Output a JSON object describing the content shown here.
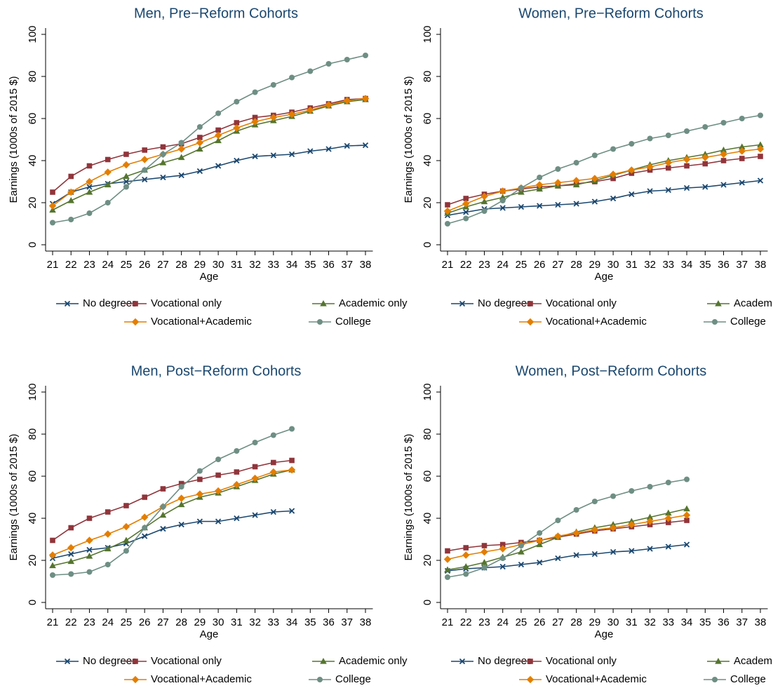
{
  "chart_data": [
    {
      "type": "line",
      "title": "Men, Pre−Reform Cohorts",
      "xlabel": "Age",
      "ylabel": "Earnings (1000s of 2015 $)",
      "x": [
        21,
        22,
        23,
        24,
        25,
        26,
        27,
        28,
        29,
        30,
        31,
        32,
        33,
        34,
        35,
        36,
        37,
        38
      ],
      "xlim": [
        20.6,
        38.4
      ],
      "xticks": [
        21,
        22,
        23,
        24,
        25,
        26,
        27,
        28,
        29,
        30,
        31,
        32,
        33,
        34,
        35,
        36,
        37,
        38
      ],
      "ylim": [
        -3,
        103
      ],
      "yticks": [
        0,
        20,
        40,
        60,
        80,
        100
      ],
      "series": [
        {
          "name": "No degrees",
          "color": "#1a476f",
          "marker": "x",
          "values": [
            19.5,
            25,
            27.5,
            29,
            30,
            31,
            32,
            33,
            35,
            37.5,
            40,
            42,
            42.5,
            43,
            44.5,
            45.5,
            47,
            47.3
          ]
        },
        {
          "name": "Vocational only",
          "color": "#90353b",
          "marker": "square",
          "values": [
            25,
            32.5,
            37.5,
            40.5,
            43,
            45,
            46.5,
            48,
            51,
            54.5,
            58,
            60.5,
            61.5,
            63,
            65,
            67,
            69,
            69.5
          ]
        },
        {
          "name": "Academic only",
          "color": "#55752f",
          "marker": "triangle",
          "values": [
            16.5,
            21,
            25,
            28.5,
            32.5,
            35.5,
            39,
            41.5,
            45.5,
            49.5,
            54,
            57,
            59,
            61,
            63.5,
            66,
            68,
            69
          ]
        },
        {
          "name": "Vocational+Academic",
          "color": "#e37e00",
          "marker": "diamond",
          "values": [
            18.5,
            25,
            30,
            34.5,
            38,
            40.5,
            43,
            45.5,
            48.5,
            52,
            55.5,
            58.5,
            60.5,
            62,
            64,
            66.5,
            68.5,
            69.5
          ]
        },
        {
          "name": "College",
          "color": "#6e8e84",
          "marker": "circle",
          "values": [
            10.5,
            12,
            15,
            20,
            27.5,
            35.5,
            43,
            48.5,
            56,
            62.5,
            68,
            72.5,
            76,
            79.5,
            82.5,
            86,
            88,
            90
          ]
        }
      ]
    },
    {
      "type": "line",
      "title": "Women, Pre−Reform Cohorts",
      "xlabel": "Age",
      "ylabel": "Earnings (1000s of 2015 $)",
      "x": [
        21,
        22,
        23,
        24,
        25,
        26,
        27,
        28,
        29,
        30,
        31,
        32,
        33,
        34,
        35,
        36,
        37,
        38
      ],
      "xlim": [
        20.6,
        38.4
      ],
      "xticks": [
        21,
        22,
        23,
        24,
        25,
        26,
        27,
        28,
        29,
        30,
        31,
        32,
        33,
        34,
        35,
        36,
        37,
        38
      ],
      "ylim": [
        -3,
        103
      ],
      "yticks": [
        0,
        20,
        40,
        60,
        80,
        100
      ],
      "series": [
        {
          "name": "No degrees",
          "color": "#1a476f",
          "marker": "x",
          "values": [
            14,
            15.5,
            17,
            17.5,
            18,
            18.5,
            19,
            19.5,
            20.5,
            22,
            24,
            25.5,
            26,
            27,
            27.5,
            28.5,
            29.5,
            30.5
          ]
        },
        {
          "name": "Vocational only",
          "color": "#90353b",
          "marker": "square",
          "values": [
            19,
            22,
            24,
            25.5,
            26.5,
            27.5,
            28,
            29,
            30,
            31.5,
            34,
            35.5,
            36.5,
            37.5,
            38.5,
            40,
            41,
            42
          ]
        },
        {
          "name": "Academic only",
          "color": "#55752f",
          "marker": "triangle",
          "values": [
            15,
            18,
            20.5,
            22.5,
            25,
            26.5,
            28,
            28.5,
            30.5,
            33,
            35.5,
            38,
            40,
            41.5,
            43,
            45,
            46.5,
            47.5
          ]
        },
        {
          "name": "Vocational+Academic",
          "color": "#e37e00",
          "marker": "diamond",
          "values": [
            16,
            19.5,
            23,
            25.5,
            27,
            28.5,
            29.5,
            30.5,
            31.5,
            33.5,
            35.5,
            37,
            39,
            40.5,
            41.5,
            43,
            44.5,
            45.5
          ]
        },
        {
          "name": "College",
          "color": "#6e8e84",
          "marker": "circle",
          "values": [
            10,
            12.5,
            16,
            21,
            27,
            32,
            36,
            39,
            42.5,
            45.5,
            48,
            50.5,
            52,
            54,
            56,
            58,
            60,
            61.5
          ]
        }
      ]
    },
    {
      "type": "line",
      "title": "Men, Post−Reform Cohorts",
      "xlabel": "Age",
      "ylabel": "Earnings (1000s of 2015 $)",
      "x": [
        21,
        22,
        23,
        24,
        25,
        26,
        27,
        28,
        29,
        30,
        31,
        32,
        33,
        34
      ],
      "xlim": [
        20.6,
        38.4
      ],
      "xticks": [
        21,
        22,
        23,
        24,
        25,
        26,
        27,
        28,
        29,
        30,
        31,
        32,
        33,
        34,
        35,
        36,
        37,
        38
      ],
      "ylim": [
        -3,
        103
      ],
      "yticks": [
        0,
        20,
        40,
        60,
        80,
        100
      ],
      "series": [
        {
          "name": "No degrees",
          "color": "#1a476f",
          "marker": "x",
          "values": [
            21,
            23,
            25,
            26,
            28,
            31.5,
            35,
            37,
            38.5,
            38.5,
            40,
            41.5,
            43,
            43.5
          ]
        },
        {
          "name": "Vocational only",
          "color": "#90353b",
          "marker": "square",
          "values": [
            29.5,
            35.5,
            40,
            43,
            46,
            50,
            54,
            56.5,
            58.5,
            60.5,
            62,
            64.5,
            66.5,
            67.5
          ]
        },
        {
          "name": "Academic only",
          "color": "#55752f",
          "marker": "triangle",
          "values": [
            17.5,
            19.5,
            22,
            25.5,
            29.5,
            35.5,
            41.5,
            46.5,
            50,
            52,
            55,
            58,
            61,
            63
          ]
        },
        {
          "name": "Vocational+Academic",
          "color": "#e37e00",
          "marker": "diamond",
          "values": [
            22.5,
            26,
            29.5,
            32.5,
            36,
            40.5,
            45.5,
            49.5,
            51.5,
            53,
            56,
            59,
            62,
            63
          ]
        },
        {
          "name": "College",
          "color": "#6e8e84",
          "marker": "circle",
          "values": [
            13,
            13.5,
            14.5,
            18,
            24.5,
            35.5,
            45.5,
            55,
            62.5,
            68,
            72,
            76,
            79.5,
            82.5
          ]
        }
      ]
    },
    {
      "type": "line",
      "title": "Women, Post−Reform Cohorts",
      "xlabel": "Age",
      "ylabel": "Earnings (1000s of 2015 $)",
      "x": [
        21,
        22,
        23,
        24,
        25,
        26,
        27,
        28,
        29,
        30,
        31,
        32,
        33,
        34
      ],
      "xlim": [
        20.6,
        38.4
      ],
      "xticks": [
        21,
        22,
        23,
        24,
        25,
        26,
        27,
        28,
        29,
        30,
        31,
        32,
        33,
        34,
        35,
        36,
        37,
        38
      ],
      "ylim": [
        -3,
        103
      ],
      "yticks": [
        0,
        20,
        40,
        60,
        80,
        100
      ],
      "series": [
        {
          "name": "No degrees",
          "color": "#1a476f",
          "marker": "x",
          "values": [
            15,
            16,
            16.5,
            17,
            18,
            19,
            21,
            22.5,
            23,
            24,
            24.5,
            25.5,
            26.5,
            27.5
          ]
        },
        {
          "name": "Vocational only",
          "color": "#90353b",
          "marker": "square",
          "values": [
            24.5,
            26,
            27,
            27.5,
            28.5,
            29.5,
            31,
            32.5,
            34,
            35,
            36,
            37,
            38,
            39
          ]
        },
        {
          "name": "Academic only",
          "color": "#55752f",
          "marker": "triangle",
          "values": [
            15.5,
            17,
            19,
            21.5,
            24,
            27.5,
            31,
            33.5,
            35.5,
            37,
            38.5,
            40.5,
            42.5,
            44.5
          ]
        },
        {
          "name": "Vocational+Academic",
          "color": "#e37e00",
          "marker": "diamond",
          "values": [
            20.5,
            22.5,
            24,
            25.5,
            27.5,
            29.5,
            31.5,
            33,
            34.5,
            35.5,
            37,
            38.5,
            40,
            41.5
          ]
        },
        {
          "name": "College",
          "color": "#6e8e84",
          "marker": "circle",
          "values": [
            12,
            13.5,
            16.5,
            21,
            27,
            33,
            39,
            44,
            48,
            50.5,
            53,
            55,
            57,
            58.5
          ]
        }
      ]
    }
  ]
}
